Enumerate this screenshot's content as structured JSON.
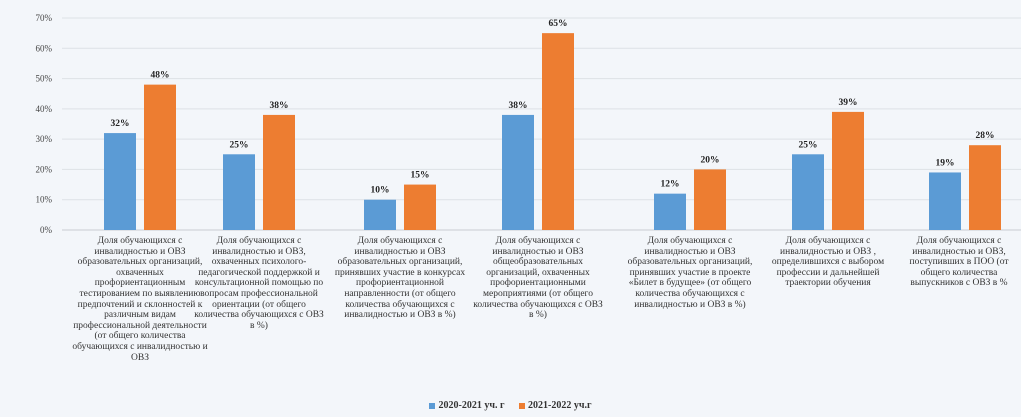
{
  "chart_data": {
    "type": "bar",
    "title": "",
    "ylim": [
      0,
      70
    ],
    "yticks": [
      "0%",
      "10%",
      "20%",
      "30%",
      "40%",
      "50%",
      "60%",
      "70%"
    ],
    "grid": true,
    "legend_position": "bottom",
    "categories": [
      "Доля обучающихся с инвалидностью и ОВЗ образовательных организаций, охваченных профориентационным тестированием по выявлению предпочтений и склонностей к различным видам профессиональной деятельности (от общего количества обучающихся с инвалидностью и ОВЗ",
      "Доля обучающихся с инвалидностью и ОВЗ, охваченных психолого-педагогической поддержкой и консультационной помощью по вопросам профессиональной ориентации (от общего количества обучающихся с ОВЗ в %)",
      "Доля обучающихся с инвалидностью и ОВЗ образовательных организаций, принявших участие в конкурсах профориентационной направленности (от общего количества обучающихся с инвалидностью и ОВЗ в %)",
      "Доля обучающихся с инвалидностью и ОВЗ общеобразовательных организаций, охваченных профориентационными мероприятиями (от общего количества обучающихся с ОВЗ в %)",
      "Доля обучающихся с инвалидностью и ОВЗ образовательных организаций, принявших участие в проекте «Билет в будущее» (от общего количества обучающихся с инвалидностью и ОВЗ в %)",
      "Доля обучающихся с инвалидностью и ОВЗ , определившихся с выбором профессии и дальнейшей траектории обучения",
      "Доля обучающихся с инвалидностью и ОВЗ, поступивших в ПОО (от общего количества выпускников с ОВЗ в %"
    ],
    "series": [
      {
        "name": "2020-2021 уч. г",
        "color": "#5b9bd5",
        "values": [
          32,
          25,
          10,
          38,
          12,
          25,
          19
        ],
        "labels": [
          "32%",
          "25%",
          "10%",
          "38%",
          "12%",
          "25%",
          "19%"
        ]
      },
      {
        "name": "2021-2022 уч.г",
        "color": "#ed7d31",
        "values": [
          48,
          38,
          15,
          65,
          20,
          39,
          28
        ],
        "labels": [
          "48%",
          "38%",
          "15%",
          "65%",
          "20%",
          "39%",
          "28%"
        ]
      }
    ]
  }
}
